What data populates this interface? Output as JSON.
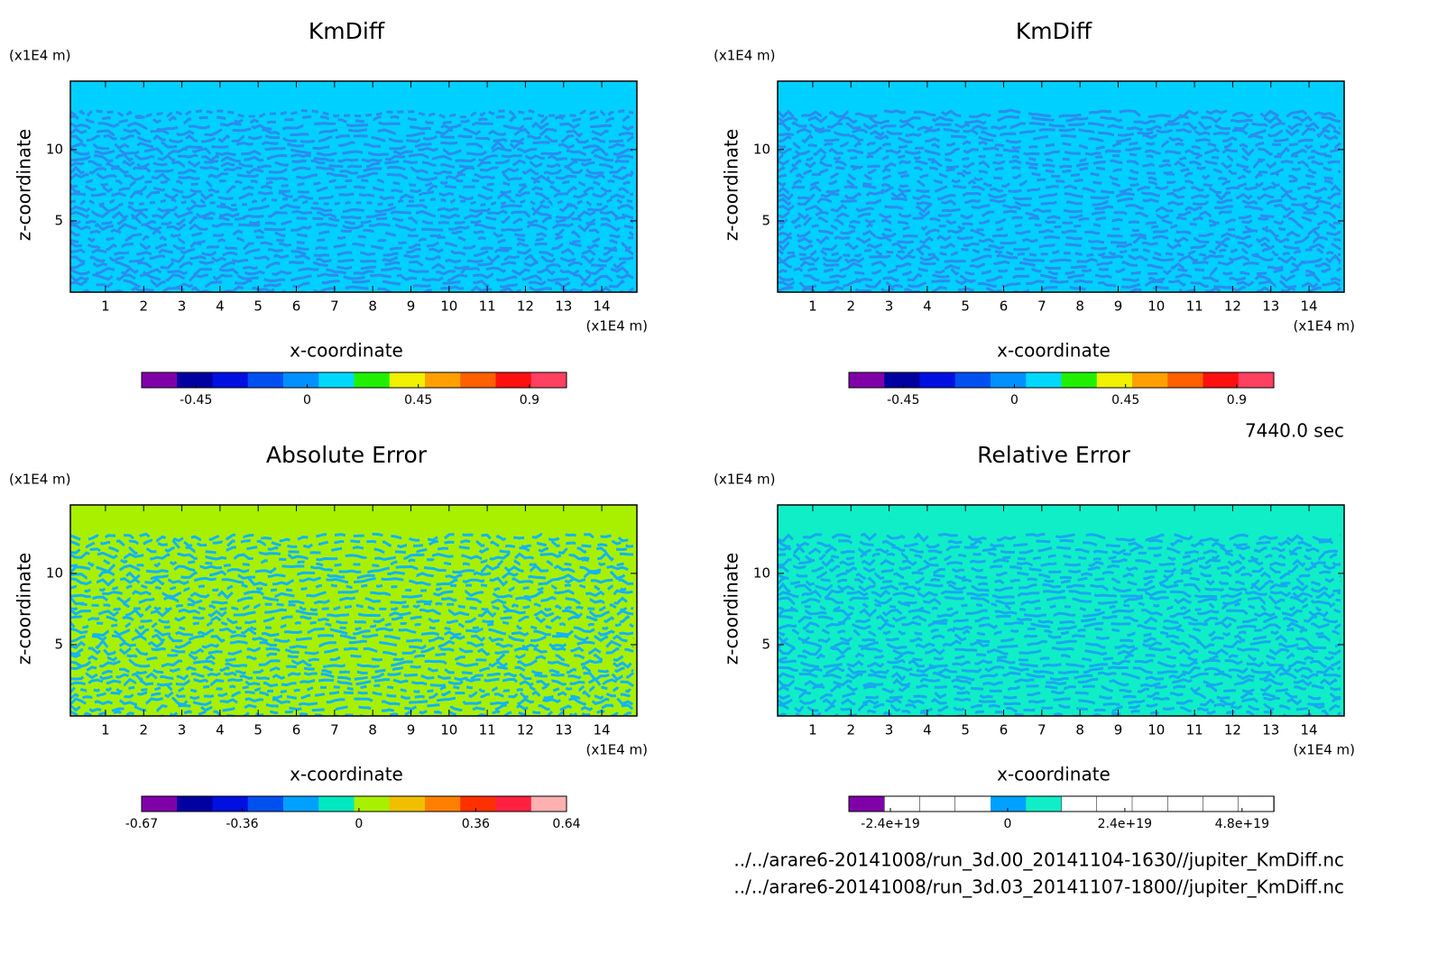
{
  "chart_data": [
    {
      "type": "contour",
      "title": "KmDiff",
      "x_label": "x-coordinate",
      "y_label": "z-coordinate",
      "x_unit": "(x1E4 m)",
      "y_unit": "(x1E4 m)",
      "xlim": [
        0.08,
        14.92
      ],
      "ylim": [
        0,
        14.8
      ],
      "xticks": [
        1,
        2,
        3,
        4,
        5,
        6,
        7,
        8,
        9,
        10,
        11,
        12,
        13,
        14
      ],
      "yticks": [
        5,
        10
      ],
      "field_colors": [
        "#00d0ff",
        "#2a8cf0"
      ],
      "colorbar": {
        "colors": [
          "#8000a8",
          "#0000a0",
          "#0010e0",
          "#0050f0",
          "#0090ff",
          "#00d8ff",
          "#20f000",
          "#f0f000",
          "#ffa000",
          "#ff6000",
          "#ff1010",
          "#ff4060"
        ],
        "lim": [
          -0.67,
          1.05
        ],
        "ticks": [
          -0.45,
          0,
          0.45,
          0.9
        ]
      }
    },
    {
      "type": "contour",
      "title": "KmDiff",
      "x_label": "x-coordinate",
      "y_label": "z-coordinate",
      "x_unit": "(x1E4 m)",
      "y_unit": "(x1E4 m)",
      "xlim": [
        0.08,
        14.92
      ],
      "ylim": [
        0,
        14.8
      ],
      "xticks": [
        1,
        2,
        3,
        4,
        5,
        6,
        7,
        8,
        9,
        10,
        11,
        12,
        13,
        14
      ],
      "yticks": [
        5,
        10
      ],
      "field_colors": [
        "#00d0ff",
        "#2a8cf0"
      ],
      "colorbar": {
        "colors": [
          "#8000a8",
          "#0000a0",
          "#0010e0",
          "#0050f0",
          "#0090ff",
          "#00d8ff",
          "#20f000",
          "#f0f000",
          "#ffa000",
          "#ff6000",
          "#ff1010",
          "#ff4060"
        ],
        "lim": [
          -0.67,
          1.05
        ],
        "ticks": [
          -0.45,
          0,
          0.45,
          0.9
        ]
      }
    },
    {
      "type": "contour",
      "title": "Absolute Error",
      "x_label": "x-coordinate",
      "y_label": "z-coordinate",
      "x_unit": "(x1E4 m)",
      "y_unit": "(x1E4 m)",
      "xlim": [
        0.08,
        14.92
      ],
      "ylim": [
        0,
        14.8
      ],
      "xticks": [
        1,
        2,
        3,
        4,
        5,
        6,
        7,
        8,
        9,
        10,
        11,
        12,
        13,
        14
      ],
      "yticks": [
        5,
        10
      ],
      "field_colors": [
        "#a8f000",
        "#10b4ff"
      ],
      "colorbar": {
        "colors": [
          "#8000a8",
          "#0000a0",
          "#0010e0",
          "#0050f0",
          "#00a0ff",
          "#00e8c0",
          "#a8f000",
          "#f0c000",
          "#ff8000",
          "#ff3000",
          "#ff2040",
          "#ffb0b0"
        ],
        "lim": [
          -0.67,
          0.64
        ],
        "ticks": [
          -0.67,
          -0.36,
          0,
          0.36,
          0.64
        ]
      }
    },
    {
      "type": "contour",
      "title": "Relative Error",
      "x_label": "x-coordinate",
      "y_label": "z-coordinate",
      "x_unit": "(x1E4 m)",
      "y_unit": "(x1E4 m)",
      "xlim": [
        0.08,
        14.92
      ],
      "ylim": [
        0,
        14.8
      ],
      "xticks": [
        1,
        2,
        3,
        4,
        5,
        6,
        7,
        8,
        9,
        10,
        11,
        12,
        13,
        14
      ],
      "yticks": [
        5,
        10
      ],
      "field_colors": [
        "#10eec8",
        "#18a8f0"
      ],
      "colorbar": {
        "colors": [
          "#8000a8",
          "#ffffff",
          "#ffffff",
          "#ffffff",
          "#00a0ff",
          "#10eec8",
          "#ffffff",
          "#ffffff",
          "#ffffff",
          "#ffffff",
          "#ffffff",
          "#ffffff"
        ],
        "lim": [
          -3.25e+19,
          5.45e+19
        ],
        "ticks": [
          {
            "value": -2.4e+19,
            "label": "-2.4e+19"
          },
          0,
          {
            "value": 2.4e+19,
            "label": "2.4e+19"
          },
          {
            "value": 4.8e+19,
            "label": "4.8e+19"
          }
        ]
      }
    }
  ],
  "time_label": "7440.0 sec",
  "files": [
    "../../arare6-20141008/run_3d.00_20141104-1630//jupiter_KmDiff.nc",
    "../../arare6-20141008/run_3d.03_20141107-1800//jupiter_KmDiff.nc"
  ]
}
